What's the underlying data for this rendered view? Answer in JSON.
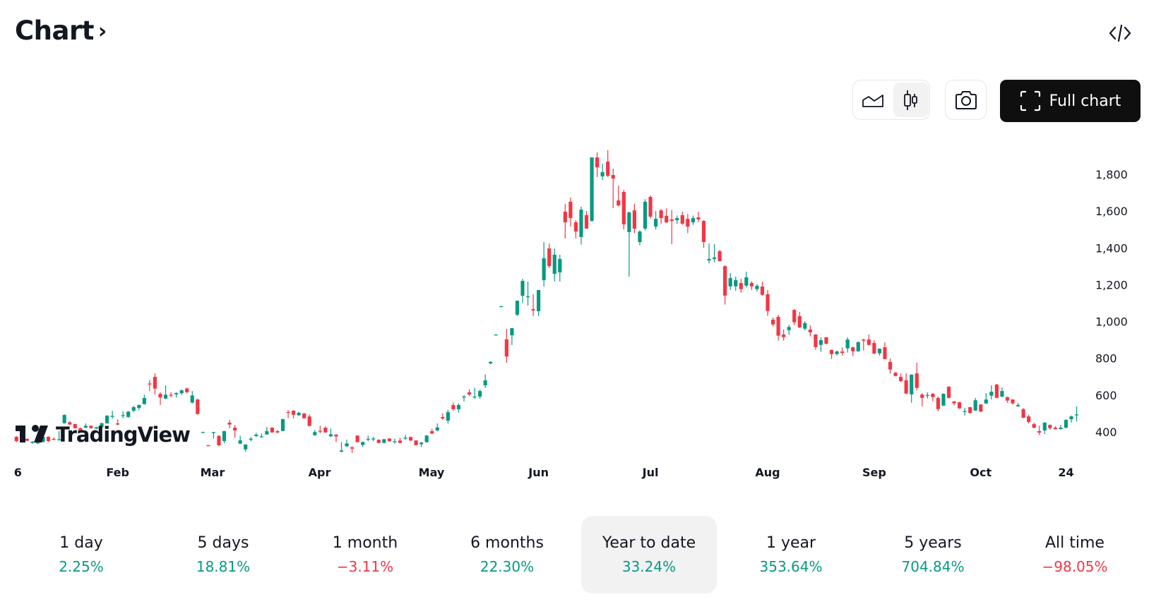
{
  "header": {
    "title": "Chart",
    "chevron": "›",
    "embed_icon": "code-icon"
  },
  "toolbar": {
    "line_chart_icon": "area-chart-icon",
    "candle_chart_icon": "candlestick-icon",
    "active_style": "candles",
    "snapshot_icon": "camera-icon",
    "full_chart_label": "Full chart",
    "full_chart_icon": "fullscreen-icon"
  },
  "watermark": "TradingView",
  "colors": {
    "up": "#089981",
    "down": "#F23645",
    "text": "#131722",
    "active_bg": "#f2f2f2"
  },
  "periods": [
    {
      "label": "1 day",
      "value": "2.25%",
      "dir": "up"
    },
    {
      "label": "5 days",
      "value": "18.81%",
      "dir": "up"
    },
    {
      "label": "1 month",
      "value": "−3.11%",
      "dir": "down"
    },
    {
      "label": "6 months",
      "value": "22.30%",
      "dir": "up"
    },
    {
      "label": "Year to date",
      "value": "33.24%",
      "dir": "up",
      "active": true
    },
    {
      "label": "1 year",
      "value": "353.64%",
      "dir": "up"
    },
    {
      "label": "5 years",
      "value": "704.84%",
      "dir": "up"
    },
    {
      "label": "All time",
      "value": "−98.05%",
      "dir": "down"
    }
  ],
  "chart_data": {
    "type": "candlestick",
    "title": "",
    "ylim": [
      300,
      1950
    ],
    "y_ticks": [
      {
        "value": 1800,
        "label": "1,800"
      },
      {
        "value": 1600,
        "label": "1,600"
      },
      {
        "value": 1400,
        "label": "1,400"
      },
      {
        "value": 1200,
        "label": "1,200"
      },
      {
        "value": 1000,
        "label": "1,000"
      },
      {
        "value": 800,
        "label": "800"
      },
      {
        "value": 600,
        "label": "600"
      },
      {
        "value": 400,
        "label": "400"
      }
    ],
    "x_ticks": [
      {
        "label": "6",
        "index": 0
      },
      {
        "label": "Feb",
        "index": 19
      },
      {
        "label": "Mar",
        "index": 36.8
      },
      {
        "label": "Apr",
        "index": 56.9
      },
      {
        "label": "May",
        "index": 77.9
      },
      {
        "label": "Jun",
        "index": 98
      },
      {
        "label": "Jul",
        "index": 119
      },
      {
        "label": "Aug",
        "index": 141
      },
      {
        "label": "Sep",
        "index": 161
      },
      {
        "label": "Oct",
        "index": 181
      },
      {
        "label": "24",
        "index": 197
      }
    ],
    "grid": false,
    "ohlc_fields": [
      "open",
      "high",
      "low",
      "close"
    ],
    "candles": [
      [
        373,
        378,
        344,
        350
      ],
      [
        352,
        366,
        348,
        362
      ],
      [
        362,
        365,
        348,
        352
      ],
      [
        340,
        350,
        336,
        346
      ],
      [
        338,
        344,
        334,
        342
      ],
      [
        345,
        374,
        343,
        372
      ],
      [
        373,
        376,
        345,
        350
      ],
      [
        362,
        370,
        355,
        360
      ],
      [
        355,
        404,
        352,
        360
      ],
      [
        447,
        495,
        445,
        492
      ],
      [
        452,
        459,
        437,
        440
      ],
      [
        442,
        445,
        418,
        420
      ],
      [
        420,
        424,
        400,
        405
      ],
      [
        423,
        446,
        420,
        433
      ],
      [
        433,
        436,
        418,
        420
      ],
      [
        418,
        428,
        415,
        425
      ],
      [
        425,
        450,
        423,
        447
      ],
      [
        447,
        491,
        444,
        488
      ],
      [
        485,
        515,
        472,
        487
      ],
      [
        446,
        468,
        436,
        440
      ],
      [
        487,
        512,
        474,
        491
      ],
      [
        481,
        513,
        478,
        510
      ],
      [
        515,
        542,
        507,
        534
      ],
      [
        530,
        549,
        518,
        546
      ],
      [
        551,
        602,
        548,
        584
      ],
      [
        663,
        682,
        622,
        658
      ],
      [
        699,
        718,
        603,
        635
      ],
      [
        606,
        615,
        546,
        587
      ],
      [
        581,
        653,
        578,
        602
      ],
      [
        602,
        615,
        587,
        599
      ],
      [
        604,
        615,
        586,
        611
      ],
      [
        610,
        630,
        601,
        626
      ],
      [
        636,
        640,
        610,
        616
      ],
      [
        559,
        622,
        555,
        598
      ],
      [
        576,
        580,
        494,
        497
      ],
      [
        399,
        401,
        397,
        399
      ],
      [
        327,
        329,
        325,
        326
      ],
      [
        399,
        400,
        363,
        399
      ],
      [
        378,
        382,
        322,
        327
      ],
      [
        350,
        406,
        338,
        404
      ],
      [
        450,
        465,
        420,
        440
      ],
      [
        423,
        437,
        369,
        408
      ],
      [
        336,
        379,
        334,
        354
      ],
      [
        305,
        333,
        292,
        331
      ],
      [
        357,
        372,
        349,
        363
      ],
      [
        377,
        395,
        372,
        385
      ],
      [
        375,
        391,
        369,
        376
      ],
      [
        386,
        427,
        384,
        404
      ],
      [
        423,
        425,
        396,
        397
      ],
      [
        404,
        411,
        391,
        397
      ],
      [
        405,
        471,
        403,
        469
      ],
      [
        508,
        519,
        475,
        505
      ],
      [
        515,
        518,
        472,
        493
      ],
      [
        490,
        509,
        488,
        504
      ],
      [
        500,
        502,
        472,
        474
      ],
      [
        484,
        495,
        430,
        432
      ],
      [
        382,
        410,
        378,
        399
      ],
      [
        406,
        433,
        392,
        405
      ],
      [
        423,
        430,
        395,
        397
      ],
      [
        376,
        418,
        372,
        387
      ],
      [
        385,
        387,
        344,
        375
      ],
      [
        292,
        344,
        290,
        299
      ],
      [
        321,
        358,
        319,
        337
      ],
      [
        316,
        322,
        286,
        309
      ],
      [
        380,
        382,
        342,
        344
      ],
      [
        329,
        347,
        318,
        345
      ],
      [
        357,
        380,
        349,
        362
      ],
      [
        360,
        373,
        349,
        364
      ],
      [
        357,
        359,
        338,
        340
      ],
      [
        340,
        362,
        338,
        360
      ],
      [
        364,
        366,
        347,
        349
      ],
      [
        348,
        363,
        336,
        349
      ],
      [
        353,
        368,
        338,
        340
      ],
      [
        368,
        384,
        356,
        369
      ],
      [
        372,
        374,
        351,
        353
      ],
      [
        353,
        355,
        326,
        328
      ],
      [
        333,
        344,
        318,
        342
      ],
      [
        344,
        382,
        342,
        380
      ],
      [
        404,
        418,
        388,
        391
      ],
      [
        408,
        446,
        403,
        424
      ],
      [
        481,
        500,
        465,
        473
      ],
      [
        461,
        520,
        445,
        507
      ],
      [
        546,
        560,
        515,
        523
      ],
      [
        523,
        556,
        505,
        546
      ],
      [
        588,
        600,
        565,
        592
      ],
      [
        615,
        632,
        595,
        603
      ],
      [
        588,
        640,
        580,
        592
      ],
      [
        592,
        630,
        580,
        622
      ],
      [
        653,
        712,
        638,
        680
      ],
      [
        772,
        785,
        768,
        780
      ],
      [
        929,
        931,
        927,
        929
      ],
      [
        1083,
        1085,
        1081,
        1083
      ],
      [
        903,
        960,
        776,
        810
      ],
      [
        925,
        964,
        872,
        964
      ],
      [
        1037,
        1113,
        1030,
        1113
      ],
      [
        1140,
        1232,
        1100,
        1221
      ],
      [
        1133,
        1217,
        1087,
        1137
      ],
      [
        1067,
        1148,
        1029,
        1060
      ],
      [
        1056,
        1171,
        1029,
        1171
      ],
      [
        1225,
        1432,
        1190,
        1344
      ],
      [
        1397,
        1424,
        1290,
        1301
      ],
      [
        1259,
        1397,
        1217,
        1363
      ],
      [
        1267,
        1363,
        1217,
        1340
      ],
      [
        1597,
        1639,
        1451,
        1539
      ],
      [
        1651,
        1674,
        1516,
        1562
      ],
      [
        1539,
        1551,
        1451,
        1489
      ],
      [
        1459,
        1624,
        1418,
        1608
      ],
      [
        1578,
        1601,
        1520,
        1505
      ],
      [
        1547,
        1892,
        1543,
        1892
      ],
      [
        1892,
        1919,
        1785,
        1838
      ],
      [
        1789,
        1858,
        1769,
        1812
      ],
      [
        1869,
        1931,
        1785,
        1792
      ],
      [
        1796,
        1831,
        1616,
        1777
      ],
      [
        1658,
        1739,
        1625,
        1631
      ],
      [
        1704,
        1716,
        1500,
        1528
      ],
      [
        1486,
        1597,
        1244,
        1593
      ],
      [
        1604,
        1640,
        1480,
        1505
      ],
      [
        1432,
        1495,
        1415,
        1489
      ],
      [
        1505,
        1665,
        1495,
        1651
      ],
      [
        1677,
        1685,
        1560,
        1570
      ],
      [
        1516,
        1600,
        1500,
        1558
      ],
      [
        1604,
        1612,
        1530,
        1562
      ],
      [
        1574,
        1615,
        1535,
        1539
      ],
      [
        1555,
        1607,
        1420,
        1547
      ],
      [
        1551,
        1576,
        1530,
        1562
      ],
      [
        1578,
        1597,
        1525,
        1532
      ],
      [
        1558,
        1585,
        1480,
        1516
      ],
      [
        1539,
        1576,
        1525,
        1562
      ],
      [
        1566,
        1597,
        1540,
        1555
      ],
      [
        1547,
        1550,
        1400,
        1432
      ],
      [
        1332,
        1424,
        1316,
        1340
      ],
      [
        1340,
        1420,
        1322,
        1348
      ],
      [
        1382,
        1390,
        1326,
        1328
      ],
      [
        1301,
        1305,
        1092,
        1141
      ],
      [
        1191,
        1263,
        1172,
        1236
      ],
      [
        1191,
        1244,
        1167,
        1225
      ],
      [
        1209,
        1232,
        1156,
        1176
      ],
      [
        1195,
        1271,
        1185,
        1240
      ],
      [
        1209,
        1219,
        1172,
        1191
      ],
      [
        1176,
        1204,
        1164,
        1194
      ],
      [
        1190,
        1217,
        1140,
        1145
      ],
      [
        1148,
        1171,
        1030,
        1057
      ],
      [
        1010,
        1021,
        973,
        984
      ],
      [
        1025,
        1037,
        896,
        923
      ],
      [
        929,
        956,
        896,
        915
      ],
      [
        953,
        982,
        927,
        970
      ],
      [
        1063,
        1067,
        980,
        996
      ],
      [
        1029,
        1052,
        964,
        968
      ],
      [
        961,
        1002,
        950,
        991
      ],
      [
        956,
        979,
        919,
        941
      ],
      [
        929,
        932,
        846,
        861
      ],
      [
        873,
        914,
        835,
        899
      ],
      [
        914,
        916,
        875,
        879
      ],
      [
        845,
        848,
        796,
        823
      ],
      [
        823,
        842,
        815,
        837
      ],
      [
        837,
        860,
        815,
        829
      ],
      [
        854,
        914,
        831,
        902
      ],
      [
        860,
        863,
        812,
        838
      ],
      [
        838,
        892,
        835,
        888
      ],
      [
        902,
        905,
        842,
        896
      ],
      [
        902,
        929,
        870,
        873
      ],
      [
        883,
        898,
        822,
        826
      ],
      [
        827,
        854,
        815,
        852
      ],
      [
        860,
        887,
        794,
        796
      ],
      [
        780,
        799,
        716,
        739
      ],
      [
        722,
        725,
        702,
        704
      ],
      [
        699,
        718,
        670,
        676
      ],
      [
        680,
        718,
        605,
        608
      ],
      [
        604,
        713,
        558,
        711
      ],
      [
        718,
        776,
        624,
        639
      ],
      [
        603,
        611,
        539,
        585
      ],
      [
        597,
        615,
        581,
        601
      ],
      [
        607,
        611,
        566,
        589
      ],
      [
        584,
        592,
        512,
        524
      ],
      [
        543,
        610,
        540,
        607
      ],
      [
        645,
        649,
        582,
        585
      ],
      [
        565,
        569,
        543,
        555
      ],
      [
        561,
        563,
        525,
        528
      ],
      [
        508,
        530,
        489,
        513
      ],
      [
        534,
        536,
        497,
        503
      ],
      [
        516,
        584,
        514,
        572
      ],
      [
        549,
        551,
        507,
        511
      ],
      [
        554,
        611,
        552,
        576
      ],
      [
        597,
        653,
        576,
        618
      ],
      [
        657,
        661,
        583,
        585
      ],
      [
        592,
        641,
        588,
        622
      ],
      [
        588,
        592,
        558,
        570
      ],
      [
        576,
        578,
        549,
        555
      ],
      [
        539,
        558,
        535,
        546
      ],
      [
        523,
        530,
        475,
        477
      ],
      [
        484,
        493,
        446,
        454
      ],
      [
        442,
        450,
        419,
        423
      ],
      [
        404,
        434,
        382,
        396
      ],
      [
        408,
        454,
        388,
        450
      ],
      [
        438,
        440,
        411,
        420
      ],
      [
        423,
        431,
        413,
        415
      ],
      [
        415,
        438,
        413,
        423
      ],
      [
        423,
        469,
        419,
        465
      ],
      [
        469,
        489,
        450,
        484
      ],
      [
        490,
        538,
        457,
        495
      ]
    ]
  }
}
